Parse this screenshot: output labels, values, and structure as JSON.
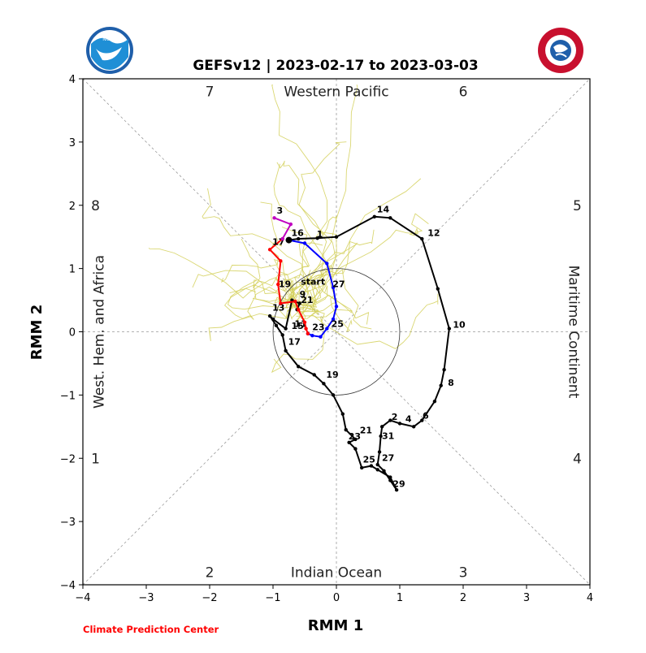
{
  "chart_data": {
    "type": "line",
    "title": "GEFSv12 | 2023-02-17 to 2023-03-03",
    "xlabel": "RMM 1",
    "ylabel": "RMM 2",
    "xlim": [
      -4,
      4
    ],
    "ylim": [
      -4,
      4
    ],
    "xticks": [
      "−4",
      "−3",
      "−2",
      "−1",
      "0",
      "1",
      "2",
      "3",
      "4"
    ],
    "yticks": [
      "−4",
      "−3",
      "−2",
      "−1",
      "0",
      "1",
      "2",
      "3",
      "4"
    ],
    "phase_numbers": [
      {
        "label": "7",
        "x": -2.0,
        "y": 3.8
      },
      {
        "label": "6",
        "x": 2.0,
        "y": 3.8
      },
      {
        "label": "8",
        "x": -3.8,
        "y": 2.0
      },
      {
        "label": "5",
        "x": 3.8,
        "y": 2.0
      },
      {
        "label": "1",
        "x": -3.8,
        "y": -2.0
      },
      {
        "label": "4",
        "x": 3.8,
        "y": -2.0
      },
      {
        "label": "2",
        "x": -2.0,
        "y": -3.8
      },
      {
        "label": "3",
        "x": 2.0,
        "y": -3.8
      }
    ],
    "region_labels": {
      "top": "Western Pacific",
      "bottom": "Indian Ocean",
      "left": "West. Hem. and Africa",
      "right": "Maritime Continent"
    },
    "unit_circle_radius": 1,
    "series": [
      {
        "color": "#000000",
        "points": [
          [
            -0.75,
            1.45
          ],
          [
            -0.6,
            1.47
          ],
          [
            -0.3,
            1.48
          ],
          [
            0,
            1.5
          ],
          [
            0.6,
            1.82
          ],
          [
            0.85,
            1.8
          ],
          [
            1.35,
            1.47
          ],
          [
            1.6,
            0.68
          ],
          [
            1.78,
            0.05
          ],
          [
            1.7,
            -0.6
          ],
          [
            1.65,
            -0.85
          ],
          [
            1.55,
            -1.1
          ],
          [
            1.35,
            -1.4
          ],
          [
            1.22,
            -1.5
          ],
          [
            1.0,
            -1.45
          ],
          [
            0.85,
            -1.4
          ],
          [
            0.72,
            -1.5
          ],
          [
            0.7,
            -1.65
          ],
          [
            0.68,
            -1.9
          ],
          [
            0.65,
            -2.1
          ],
          [
            0.75,
            -2.2
          ],
          [
            0.85,
            -2.35
          ],
          [
            0.95,
            -2.5
          ],
          [
            0.85,
            -2.3
          ],
          [
            0.65,
            -2.18
          ],
          [
            0.55,
            -2.12
          ],
          [
            0.4,
            -2.15
          ],
          [
            0.3,
            -1.85
          ],
          [
            0.2,
            -1.75
          ],
          [
            0.3,
            -1.7
          ],
          [
            0.15,
            -1.55
          ],
          [
            0.1,
            -1.3
          ],
          [
            -0.05,
            -1.0
          ],
          [
            -0.2,
            -0.82
          ],
          [
            -0.35,
            -0.68
          ],
          [
            -0.6,
            -0.55
          ],
          [
            -0.8,
            -0.3
          ],
          [
            -0.85,
            -0.05
          ],
          [
            -0.95,
            0.1
          ],
          [
            -1.05,
            0.25
          ],
          [
            -1.0,
            0.2
          ],
          [
            -0.8,
            0.05
          ],
          [
            -0.7,
            0.5
          ],
          [
            -0.58,
            0.45
          ],
          [
            -0.62,
            0.35
          ]
        ],
        "labels": [
          {
            "text": "16",
            "x": -0.75,
            "y": 1.49
          },
          {
            "text": "1",
            "x": -0.35,
            "y": 1.47
          },
          {
            "text": "14",
            "x": 0.6,
            "y": 1.86
          },
          {
            "text": "12",
            "x": 1.4,
            "y": 1.49
          },
          {
            "text": "10",
            "x": 1.8,
            "y": 0.04
          },
          {
            "text": "8",
            "x": 1.72,
            "y": -0.88
          },
          {
            "text": "6",
            "x": 1.32,
            "y": -1.4
          },
          {
            "text": "4",
            "x": 1.05,
            "y": -1.45
          },
          {
            "text": "2",
            "x": 0.83,
            "y": -1.42
          },
          {
            "text": "31",
            "x": 0.68,
            "y": -1.72
          },
          {
            "text": "27",
            "x": 0.68,
            "y": -2.07
          },
          {
            "text": "29",
            "x": 0.85,
            "y": -2.48
          },
          {
            "text": "25",
            "x": 0.38,
            "y": -2.09
          },
          {
            "text": "23",
            "x": 0.15,
            "y": -1.73
          },
          {
            "text": "21",
            "x": 0.33,
            "y": -1.63
          },
          {
            "text": "19",
            "x": -0.2,
            "y": -0.75
          },
          {
            "text": "17",
            "x": -0.8,
            "y": -0.23
          },
          {
            "text": "15",
            "x": -0.75,
            "y": 0.02
          },
          {
            "text": "13",
            "x": -1.05,
            "y": 0.31
          },
          {
            "text": "11",
            "x": -0.7,
            "y": 0.05
          },
          {
            "text": "9",
            "x": -0.62,
            "y": 0.52
          },
          {
            "text": "start",
            "x": -0.6,
            "y": 0.72
          }
        ]
      },
      {
        "color": "#0000ff",
        "points": [
          [
            -0.75,
            1.45
          ],
          [
            -0.5,
            1.4
          ],
          [
            -0.15,
            1.08
          ],
          [
            -0.05,
            0.7
          ],
          [
            0,
            0.4
          ],
          [
            -0.05,
            0.2
          ],
          [
            -0.15,
            0.05
          ],
          [
            -0.25,
            -0.08
          ],
          [
            -0.38,
            -0.06
          ],
          [
            -0.45,
            -0.03
          ]
        ],
        "labels": [
          {
            "text": "27",
            "x": -0.1,
            "y": 0.68
          },
          {
            "text": "25",
            "x": -0.12,
            "y": 0.05
          },
          {
            "text": "23",
            "x": -0.42,
            "y": 0.0
          }
        ]
      },
      {
        "color": "#ff0000",
        "points": [
          [
            -0.45,
            -0.03
          ],
          [
            -0.48,
            0.05
          ],
          [
            -0.5,
            0.15
          ],
          [
            -0.6,
            0.35
          ],
          [
            -0.65,
            0.48
          ],
          [
            -0.88,
            0.45
          ],
          [
            -0.92,
            0.75
          ],
          [
            -0.88,
            1.12
          ],
          [
            -1.05,
            1.3
          ],
          [
            -0.85,
            1.47
          ]
        ],
        "labels": [
          {
            "text": "21",
            "x": -0.6,
            "y": 0.43
          },
          {
            "text": "19",
            "x": -0.95,
            "y": 0.68
          },
          {
            "text": "17",
            "x": -1.05,
            "y": 1.35
          }
        ]
      },
      {
        "color": "#c000c0",
        "points": [
          [
            -0.85,
            1.47
          ],
          [
            -0.72,
            1.7
          ],
          [
            -0.98,
            1.8
          ]
        ],
        "labels": [
          {
            "text": "3",
            "x": -0.98,
            "y": 1.84
          }
        ]
      }
    ],
    "grid": false,
    "legend": "none"
  },
  "footer": {
    "credit": "Climate Prediction Center"
  },
  "colors": {
    "ensemble": "#d4d05a",
    "credit": "#ff0000"
  },
  "logos": {
    "left": "NOAA",
    "right": "NATIONAL WEATHER SERVICE"
  }
}
